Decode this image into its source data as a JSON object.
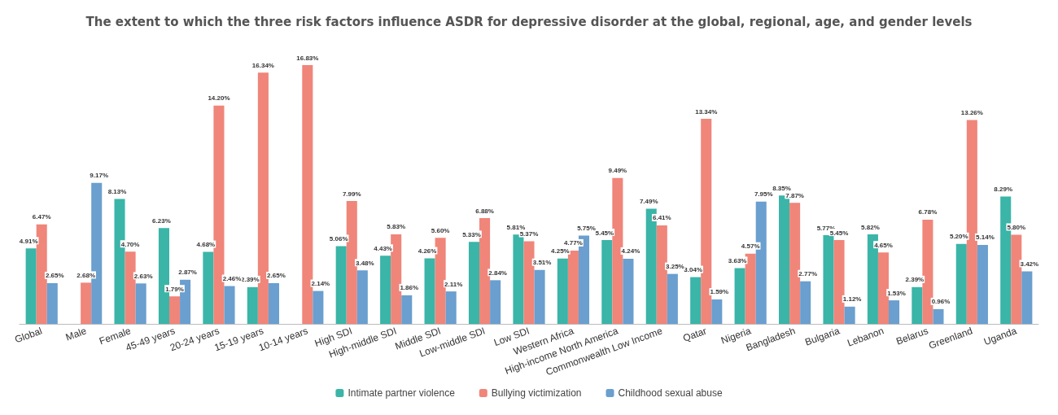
{
  "chart_data": {
    "type": "bar",
    "title": "The extent to which the three risk factors influence ASDR for depressive disorder at the global, regional, age, and gender levels",
    "categories": [
      "Global",
      "Male",
      "Female",
      "45-49 years",
      "20-24 years",
      "15-19 years",
      "10-14 years",
      "High SDI",
      "High-middle SDI",
      "Middle SDI",
      "Low-middle SDI",
      "Low SDI",
      "Western Africa",
      "High-income North America",
      "Commonwealth Low Income",
      "Qatar",
      "Nigeria",
      "Bangladesh",
      "Bulgaria",
      "Lebanon",
      "Belarus",
      "Greenland",
      "Uganda"
    ],
    "tick_labels": "x",
    "grid": false,
    "legend": "bottom",
    "series": [
      {
        "name": "Intimate partner violence",
        "color": "#3ab5a8",
        "values": [
          4.91,
          null,
          8.13,
          6.23,
          4.68,
          2.39,
          null,
          5.06,
          4.43,
          4.26,
          5.33,
          5.81,
          4.25,
          5.45,
          7.49,
          3.04,
          3.63,
          8.35,
          5.77,
          5.82,
          2.39,
          5.2,
          8.29
        ],
        "value_labels": [
          "4.91%",
          null,
          "8.13%",
          "6.23%",
          "4.68%",
          "2.39%",
          null,
          "5.06%",
          "4.43%",
          "4.26%",
          "5.33%",
          "5.81%",
          "4.25%",
          "5.45%",
          "7.49%",
          "3.04%",
          "3.63%",
          "8.35%",
          "5.77%",
          "5.82%",
          "2.39%",
          "5.20%",
          "8.29%"
        ]
      },
      {
        "name": "Bullying victimization",
        "color": "#f0857a",
        "values": [
          6.47,
          2.68,
          4.7,
          1.79,
          14.2,
          16.34,
          16.83,
          7.99,
          5.83,
          5.6,
          6.88,
          5.37,
          4.77,
          9.49,
          6.41,
          13.34,
          4.57,
          7.87,
          5.45,
          4.65,
          6.78,
          13.26,
          5.8
        ],
        "value_labels": [
          "6.47%",
          "2.68%",
          "4.70%",
          "1.79%",
          "14.20%",
          "16.34%",
          "16.83%",
          "7.99%",
          "5.83%",
          "5.60%",
          "6.88%",
          "5.37%",
          "4.77%",
          "9.49%",
          "6.41%",
          "13.34%",
          "4.57%",
          "7.87%",
          "5.45%",
          "4.65%",
          "6.78%",
          "13.26%",
          "5.80%"
        ]
      },
      {
        "name": "Childhood sexual abuse",
        "color": "#6a9fcf",
        "values": [
          2.65,
          9.17,
          2.63,
          2.87,
          2.46,
          2.65,
          2.14,
          3.48,
          1.86,
          2.11,
          2.84,
          3.51,
          5.75,
          4.24,
          3.25,
          1.59,
          7.95,
          2.77,
          1.12,
          1.53,
          0.96,
          5.14,
          3.42
        ],
        "value_labels": [
          "2.65%",
          "9.17%",
          "2.63%",
          "2.87%",
          "2.46%",
          "2.65%",
          "2.14%",
          "3.48%",
          "1.86%",
          "2.11%",
          "2.84%",
          "3.51%",
          "5.75%",
          "4.24%",
          "3.25%",
          "1.59%",
          "7.95%",
          "2.77%",
          "1.12%",
          "1.53%",
          "0.96%",
          "5.14%",
          "3.42%"
        ]
      }
    ]
  }
}
